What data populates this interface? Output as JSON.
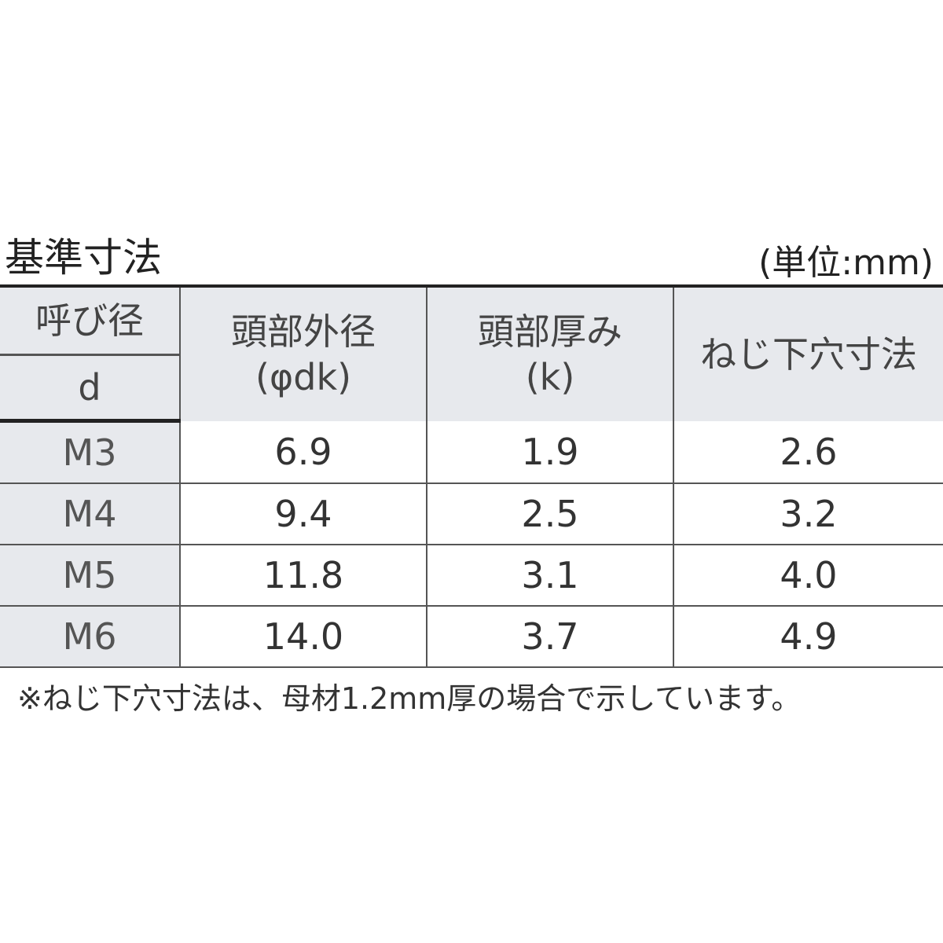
{
  "title": "基準寸法",
  "unit": "(単位:mm)",
  "headers": {
    "nominal_top": "呼び径",
    "nominal_bottom": "d",
    "head_diameter": "頭部外径",
    "head_diameter_sym": "(φdk)",
    "head_thickness": "頭部厚み",
    "head_thickness_sym": "(k)",
    "pilot_hole": "ねじ下穴寸法"
  },
  "rows": [
    {
      "d": "M3",
      "dk": "6.9",
      "k": "1.9",
      "hole": "2.6"
    },
    {
      "d": "M4",
      "dk": "9.4",
      "k": "2.5",
      "hole": "3.2"
    },
    {
      "d": "M5",
      "dk": "11.8",
      "k": "3.1",
      "hole": "4.0"
    },
    {
      "d": "M6",
      "dk": "14.0",
      "k": "3.7",
      "hole": "4.9"
    }
  ],
  "note": "※ねじ下穴寸法は、母材1.2mm厚の場合で示しています。",
  "colors": {
    "header_bg": "#e7e9ed",
    "rule": "#222222"
  }
}
